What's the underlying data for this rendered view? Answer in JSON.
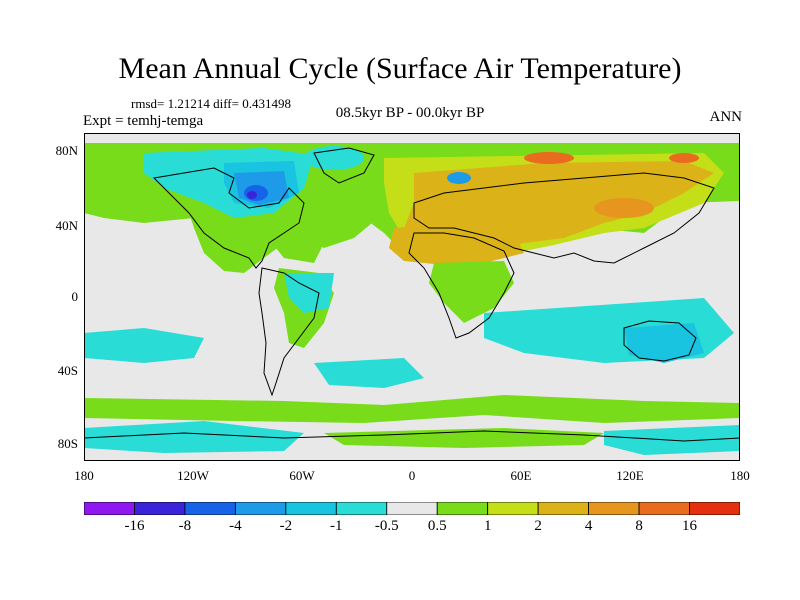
{
  "title": "Mean Annual Cycle (Surface Air Temperature)",
  "stats_text": "rmsd= 1.21214 diff= 0.431498",
  "experiment": "Expt = temhj-temga",
  "period": "08.5kyr BP - 00.0kyr BP",
  "season": "ANN",
  "lat_labels": [
    "80N",
    "40N",
    "0",
    "40S",
    "80S"
  ],
  "lon_labels": [
    "180",
    "120W",
    "60W",
    "0",
    "60E",
    "120E",
    "180"
  ],
  "colorbar": {
    "labels": [
      "-16",
      "-8",
      "-4",
      "-2",
      "-1",
      "-0.5",
      "0.5",
      "1",
      "2",
      "4",
      "8",
      "16"
    ],
    "colors": [
      "#8f17f0",
      "#3a23d9",
      "#1763e8",
      "#1d9be8",
      "#19c4e0",
      "#29dcd6",
      "#e8e8e8",
      "#78dc1a",
      "#c4de18",
      "#dcb219",
      "#e6961f",
      "#e86b20",
      "#e5300f"
    ]
  },
  "palette": {
    "neutral": "#e8e8e8",
    "warm1": "#78dc1a",
    "warm2": "#c4de18",
    "warm3": "#dcb219",
    "warm4": "#e6961f",
    "warm5": "#e86b20",
    "warm6": "#e5300f",
    "cool1": "#29dcd6",
    "cool2": "#19c4e0",
    "cool3": "#1d9be8",
    "cool4": "#1763e8",
    "cool5": "#3a23d9"
  }
}
